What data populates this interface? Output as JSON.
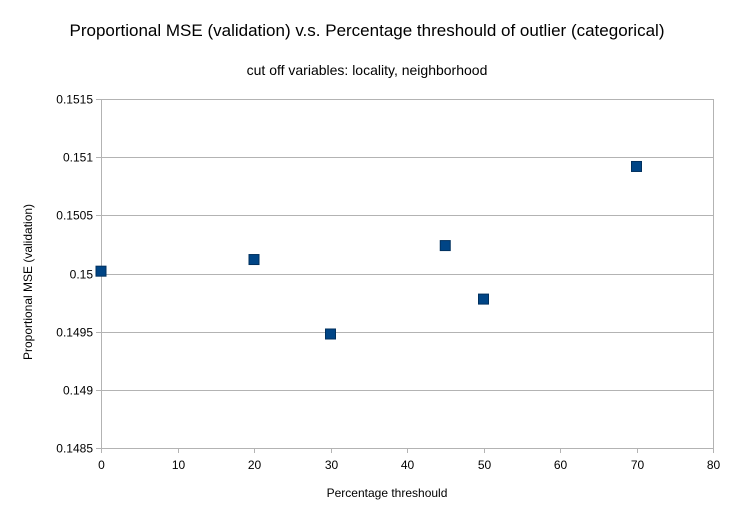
{
  "chart_data": {
    "type": "scatter",
    "title": "Proportional MSE (validation) v.s. Percentage threshould of outlier (categorical)",
    "subtitle": "cut off variables: locality, neighborhood",
    "xlabel": "Percentage threshould",
    "ylabel": "Proportional MSE (validation)",
    "xlim": [
      0,
      80
    ],
    "ylim": [
      0.1485,
      0.1515
    ],
    "x_ticks": [
      "0",
      "10",
      "20",
      "30",
      "40",
      "50",
      "60",
      "70",
      "80"
    ],
    "y_ticks": [
      "0.1515",
      "0.151",
      "0.1505",
      "0.15",
      "0.1495",
      "0.149",
      "0.1485"
    ],
    "x_tick_values": [
      0,
      10,
      20,
      30,
      40,
      50,
      60,
      70,
      80
    ],
    "y_tick_values": [
      0.1515,
      0.151,
      0.1505,
      0.15,
      0.1495,
      0.149,
      0.1485
    ],
    "grid": "horizontal",
    "legend": "none",
    "marker": "square",
    "marker_color": "#004586",
    "series": [
      {
        "points": [
          {
            "x": 0,
            "y": 0.15002
          },
          {
            "x": 20,
            "y": 0.15012
          },
          {
            "x": 30,
            "y": 0.14948
          },
          {
            "x": 45,
            "y": 0.15024
          },
          {
            "x": 50,
            "y": 0.14978
          },
          {
            "x": 70,
            "y": 0.15092
          }
        ]
      }
    ]
  }
}
